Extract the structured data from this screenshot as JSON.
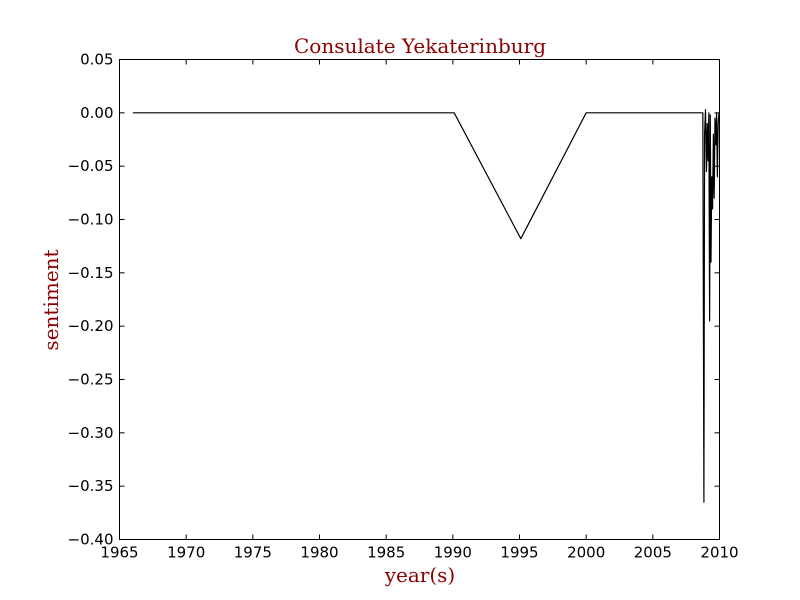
{
  "chart_data": {
    "type": "line",
    "title": "Consulate Yekaterinburg",
    "xlabel": "year(s)",
    "ylabel": "sentiment",
    "xlim": [
      1965,
      2010
    ],
    "ylim": [
      -0.4,
      0.05
    ],
    "grid": false,
    "legend": "none",
    "x_ticks": [
      "1965",
      "1970",
      "1975",
      "1980",
      "1985",
      "1990",
      "1995",
      "2000",
      "2005",
      "2010"
    ],
    "y_ticks": [
      "0.05",
      "0.00",
      "−0.05",
      "−0.10",
      "−0.15",
      "−0.20",
      "−0.25",
      "−0.30",
      "−0.35",
      "−0.40"
    ],
    "series": [
      {
        "color": "#000000",
        "x": [
          1966.0,
          1990.1,
          1995.1,
          2000.0,
          2008.75,
          2008.83,
          2008.88,
          2008.95,
          2009.02,
          2009.08,
          2009.14,
          2009.2,
          2009.26,
          2009.31,
          2009.36,
          2009.42,
          2009.48,
          2009.54,
          2009.6,
          2009.66,
          2009.72,
          2009.78,
          2009.84,
          2009.9,
          2009.96
        ],
        "values": [
          0.0,
          0.0,
          -0.118,
          0.0,
          0.0,
          -0.365,
          -0.02,
          0.003,
          -0.055,
          -0.01,
          -0.045,
          0.0,
          -0.195,
          -0.002,
          -0.14,
          -0.06,
          -0.09,
          -0.02,
          -0.08,
          -0.005,
          -0.03,
          0.0,
          -0.06,
          -0.01,
          0.0
        ]
      }
    ]
  }
}
